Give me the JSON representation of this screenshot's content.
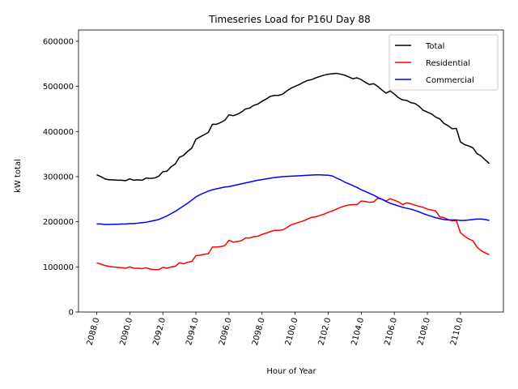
{
  "chart_data": {
    "type": "line",
    "title": "Timeseries Load for P16U   Day 88",
    "xlabel": "Hour of Year",
    "ylabel": "kW total",
    "xlim": [
      2086.9,
      2112.6
    ],
    "ylim": [
      0,
      625000
    ],
    "xticks": [
      2088,
      2090,
      2092,
      2094,
      2096,
      2098,
      2100,
      2102,
      2104,
      2106,
      2108,
      2110
    ],
    "xtick_labels": [
      "2088.0",
      "2090.0",
      "2092.0",
      "2094.0",
      "2096.0",
      "2098.0",
      "2100.0",
      "2102.0",
      "2104.0",
      "2106.0",
      "2108.0",
      "2110.0"
    ],
    "yticks": [
      0,
      100000,
      200000,
      300000,
      400000,
      500000,
      600000
    ],
    "ytick_labels": [
      "0",
      "100000",
      "200000",
      "300000",
      "400000",
      "500000",
      "600000"
    ],
    "legend_position": "top-right",
    "x": [
      2088.0,
      2088.25,
      2088.5,
      2088.75,
      2089.0,
      2089.25,
      2089.5,
      2089.75,
      2090.0,
      2090.25,
      2090.5,
      2090.75,
      2091.0,
      2091.25,
      2091.5,
      2091.75,
      2092.0,
      2092.25,
      2092.5,
      2092.75,
      2093.0,
      2093.25,
      2093.5,
      2093.75,
      2094.0,
      2094.25,
      2094.5,
      2094.75,
      2095.0,
      2095.25,
      2095.5,
      2095.75,
      2096.0,
      2096.25,
      2096.5,
      2096.75,
      2097.0,
      2097.25,
      2097.5,
      2097.75,
      2098.0,
      2098.25,
      2098.5,
      2098.75,
      2099.0,
      2099.25,
      2099.5,
      2099.75,
      2100.0,
      2100.25,
      2100.5,
      2100.75,
      2101.0,
      2101.25,
      2101.5,
      2101.75,
      2102.0,
      2102.25,
      2102.5,
      2102.75,
      2103.0,
      2103.25,
      2103.5,
      2103.75,
      2104.0,
      2104.25,
      2104.5,
      2104.75,
      2105.0,
      2105.25,
      2105.5,
      2105.75,
      2106.0,
      2106.25,
      2106.5,
      2106.75,
      2107.0,
      2107.25,
      2107.5,
      2107.75,
      2108.0,
      2108.25,
      2108.5,
      2108.75,
      2109.0,
      2109.25,
      2109.5,
      2109.75,
      2110.0,
      2110.25,
      2110.5,
      2110.75,
      2111.0,
      2111.25,
      2111.5,
      2111.75
    ],
    "series": [
      {
        "name": "Total",
        "color": "#000000",
        "values": [
          304000,
          300000,
          295000,
          293000,
          293000,
          292000,
          292000,
          291000,
          295000,
          292000,
          293000,
          292000,
          297000,
          296000,
          297000,
          301000,
          311000,
          312000,
          322000,
          328000,
          343000,
          347000,
          356000,
          363000,
          383000,
          388000,
          393000,
          398000,
          416000,
          416000,
          420000,
          425000,
          437000,
          435000,
          438000,
          443000,
          450000,
          452000,
          458000,
          461000,
          467000,
          472000,
          478000,
          480000,
          480000,
          483000,
          490000,
          496000,
          500000,
          504000,
          509000,
          513000,
          515000,
          519000,
          522000,
          525000,
          527000,
          528000,
          529000,
          527000,
          525000,
          521000,
          517000,
          519000,
          515000,
          509000,
          504000,
          506000,
          500000,
          492000,
          485000,
          490000,
          483000,
          475000,
          470000,
          469000,
          464000,
          462000,
          456000,
          447000,
          443000,
          439000,
          432000,
          428000,
          418000,
          413000,
          406000,
          407000,
          377000,
          371000,
          368000,
          364000,
          351000,
          346000,
          337000,
          329000
        ]
      },
      {
        "name": "Residential",
        "color": "#ff0000",
        "values": [
          109000,
          106000,
          103000,
          101000,
          100000,
          99000,
          98000,
          97000,
          100000,
          97000,
          97000,
          96000,
          98000,
          95000,
          94000,
          94000,
          99000,
          97000,
          100000,
          101000,
          109000,
          107000,
          110000,
          112000,
          125000,
          126000,
          128000,
          129000,
          144000,
          144000,
          145000,
          147000,
          159000,
          155000,
          156000,
          158000,
          164000,
          164000,
          167000,
          168000,
          172000,
          175000,
          178000,
          181000,
          181000,
          182000,
          187000,
          193000,
          196000,
          199000,
          202000,
          206000,
          210000,
          211000,
          214000,
          217000,
          221000,
          224000,
          228000,
          232000,
          235000,
          237000,
          238000,
          238000,
          246000,
          245000,
          243000,
          244000,
          252000,
          250000,
          246000,
          251000,
          248000,
          244000,
          238000,
          242000,
          240000,
          237000,
          234000,
          232000,
          228000,
          226000,
          224000,
          211000,
          209000,
          205000,
          202000,
          203000,
          176000,
          168000,
          162000,
          158000,
          144000,
          136000,
          131000,
          127000
        ]
      },
      {
        "name": "Commercial",
        "color": "#0000ff",
        "values": [
          195000,
          195000,
          194000,
          194000,
          194500,
          194500,
          195000,
          195000,
          196000,
          196000,
          197000,
          198000,
          199000,
          201000,
          203000,
          205000,
          209000,
          213000,
          218000,
          223000,
          229000,
          235000,
          241000,
          248000,
          255000,
          260000,
          264000,
          268000,
          271000,
          273000,
          275000,
          277000,
          278000,
          280000,
          282000,
          284000,
          286000,
          288000,
          290000,
          292000,
          293500,
          295000,
          296500,
          298000,
          299000,
          300000,
          300500,
          301000,
          301500,
          302000,
          302500,
          303000,
          303500,
          304000,
          304000,
          303500,
          303000,
          301500,
          297000,
          293000,
          288000,
          284000,
          280000,
          276000,
          271000,
          267000,
          263000,
          259000,
          254000,
          250000,
          245000,
          241000,
          238000,
          235000,
          232000,
          230000,
          228000,
          225000,
          222000,
          218000,
          215000,
          212000,
          209000,
          207000,
          205000,
          204000,
          204000,
          204000,
          203000,
          203000,
          204000,
          205000,
          206000,
          206000,
          205000,
          203000
        ]
      }
    ]
  }
}
